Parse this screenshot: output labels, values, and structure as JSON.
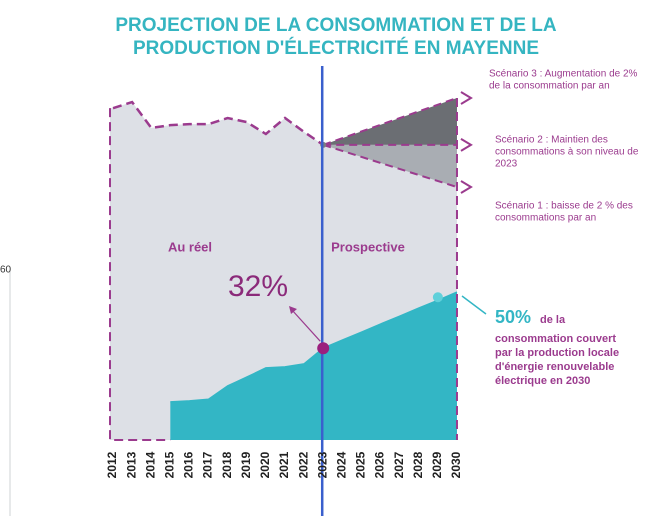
{
  "chart_data": {
    "type": "area",
    "title": [
      "PROJECTION DE LA CONSOMMATION ET DE LA",
      "PRODUCTION D'ÉLECTRICITÉ EN MAYENNE"
    ],
    "categories": [
      "2012",
      "2013",
      "2014",
      "2015",
      "2016",
      "2017",
      "2018",
      "2019",
      "2020",
      "2021",
      "2022",
      "2023",
      "2024",
      "2025",
      "2026",
      "2027",
      "2028",
      "2029",
      "2030"
    ],
    "ylim": [
      0,
      100
    ],
    "series": [
      {
        "color": "#dde0e6",
        "line_color": "#9b3b8e",
        "values": [
          97.6,
          99.4,
          91.8,
          92.6,
          92.9,
          92.9,
          94.7,
          93.5,
          90,
          94.7,
          90.6,
          86.8,
          null,
          null,
          null,
          null,
          null,
          null,
          null
        ]
      },
      {
        "color": "#33b6c5",
        "values": [
          null,
          null,
          null,
          11.2,
          11.5,
          12,
          15.9,
          18.5,
          21.2,
          21.5,
          22.4,
          27,
          29.4,
          31.7,
          34.1,
          36.4,
          38.8,
          41.1,
          43.5
        ]
      }
    ],
    "scenarios": [
      {
        "label": [
          "Scénario 3 :  Augmentation de 2%",
          "de la consommation par an"
        ],
        "value": 100.6,
        "color": "#6b6e73"
      },
      {
        "label": [
          "Scénario 2 :  Maintien des",
          "consommations à son niveau de",
          "2023"
        ],
        "value": 86.8,
        "color": "#a9adb3"
      },
      {
        "label": [
          "Scénario 1 : baisse de 2 % des",
          "consommations par an"
        ],
        "value": 74.4
      }
    ],
    "annotations": {
      "past": "Au réel",
      "future": "Prospective",
      "share_now": "32%",
      "share_2030": "50%",
      "share_2030_text": [
        "de la",
        "consommation couvert",
        "par la production locale",
        "d'énergie renouvelable",
        "électrique en 2030"
      ],
      "edge": "60"
    },
    "divider_color": "#3a5fcd"
  }
}
